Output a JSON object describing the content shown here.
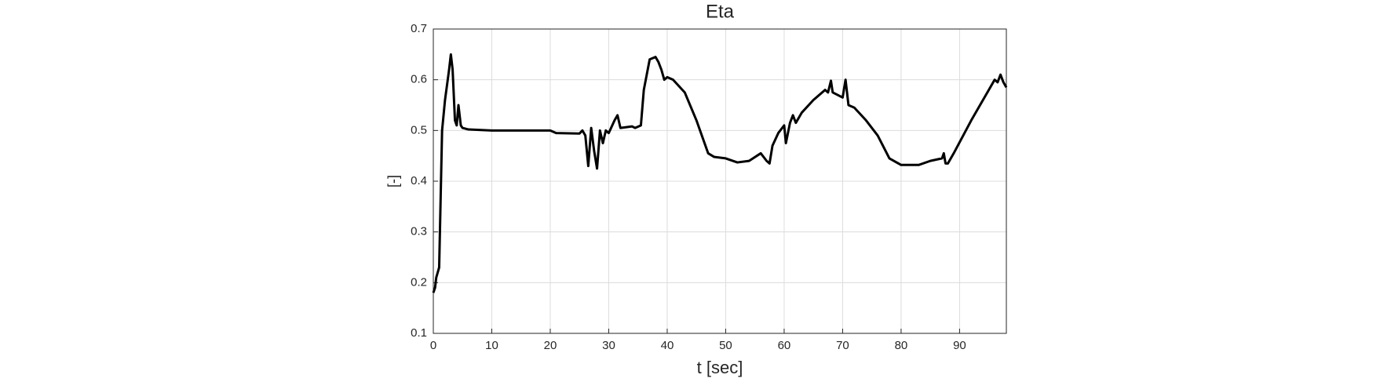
{
  "chart_data": {
    "type": "line",
    "title": "Eta",
    "xlabel": "t [sec]",
    "ylabel": "[-]",
    "x": [
      0,
      0.3,
      0.5,
      1,
      1.5,
      2,
      2.7,
      3,
      3.3,
      3.7,
      4,
      4.3,
      4.7,
      5,
      6,
      10,
      15,
      20,
      21,
      25,
      25.5,
      26,
      26.5,
      27,
      27.5,
      28,
      28.5,
      29,
      29.5,
      30,
      31,
      31.5,
      32,
      34,
      34.5,
      35.5,
      36,
      37,
      38,
      38.5,
      39,
      39.5,
      40,
      41,
      43,
      45,
      47,
      48,
      50,
      52,
      54,
      56,
      57,
      57.5,
      58,
      59,
      60,
      60.3,
      61,
      61.5,
      62,
      63,
      65,
      67,
      67.5,
      68,
      68.3,
      70,
      70.5,
      71,
      72,
      74,
      76,
      78,
      80,
      83,
      85,
      87,
      87.3,
      87.6,
      88,
      89,
      92,
      95,
      96,
      96.5,
      97,
      97.5,
      98
    ],
    "series": [
      {
        "name": "Eta",
        "color": "#000000",
        "values": [
          0.18,
          0.19,
          0.21,
          0.23,
          0.5,
          0.56,
          0.62,
          0.65,
          0.62,
          0.52,
          0.51,
          0.55,
          0.51,
          0.505,
          0.502,
          0.5,
          0.5,
          0.5,
          0.495,
          0.494,
          0.5,
          0.49,
          0.43,
          0.505,
          0.46,
          0.425,
          0.5,
          0.475,
          0.5,
          0.495,
          0.52,
          0.53,
          0.505,
          0.508,
          0.505,
          0.51,
          0.58,
          0.64,
          0.645,
          0.635,
          0.62,
          0.6,
          0.605,
          0.6,
          0.575,
          0.52,
          0.455,
          0.448,
          0.445,
          0.437,
          0.44,
          0.455,
          0.44,
          0.435,
          0.47,
          0.495,
          0.51,
          0.475,
          0.515,
          0.53,
          0.515,
          0.535,
          0.56,
          0.58,
          0.575,
          0.598,
          0.575,
          0.565,
          0.6,
          0.55,
          0.545,
          0.52,
          0.49,
          0.445,
          0.432,
          0.432,
          0.44,
          0.445,
          0.455,
          0.435,
          0.435,
          0.455,
          0.52,
          0.58,
          0.6,
          0.595,
          0.61,
          0.595,
          0.585
        ]
      }
    ],
    "xlim": [
      0,
      98
    ],
    "ylim": [
      0.1,
      0.7
    ],
    "xticks": [
      0,
      10,
      20,
      30,
      40,
      50,
      60,
      70,
      80,
      90
    ],
    "yticks": [
      0.1,
      0.2,
      0.3,
      0.4,
      0.5,
      0.6,
      0.7
    ],
    "grid": true
  }
}
